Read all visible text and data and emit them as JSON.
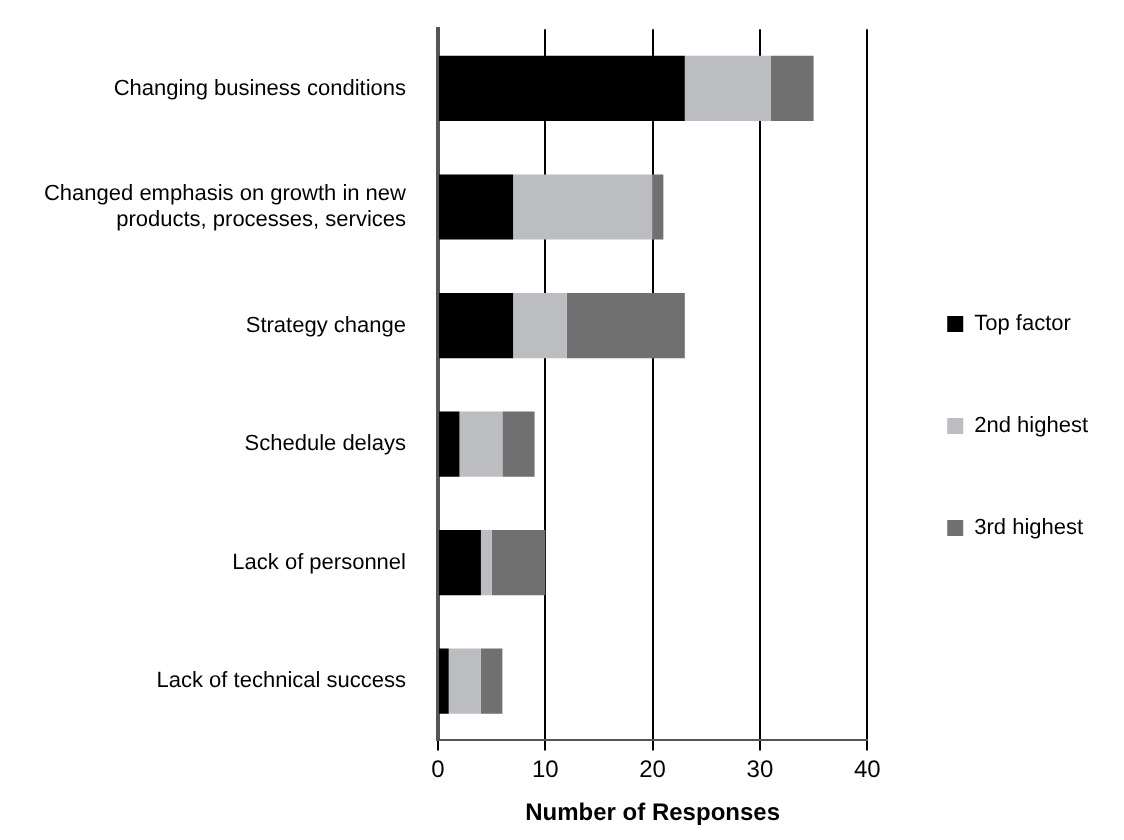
{
  "chart_data": {
    "type": "bar",
    "orientation": "horizontal",
    "stacked": true,
    "categories": [
      "Changing business conditions",
      "Changed emphasis on growth in new products, processes, services",
      "Strategy change",
      "Schedule delays",
      "Lack of personnel",
      "Lack of technical success"
    ],
    "series": [
      {
        "name": "Top factor",
        "color": "#000000",
        "values": [
          23,
          7,
          7,
          2,
          4,
          1
        ]
      },
      {
        "name": "2nd highest",
        "color": "#bcbdc0",
        "values": [
          8,
          13,
          5,
          4,
          1,
          3
        ]
      },
      {
        "name": "3rd highest",
        "color": "#707070",
        "values": [
          4,
          1,
          11,
          3,
          5,
          2
        ]
      }
    ],
    "xlabel": "Number of Responses",
    "xlim": [
      0,
      40
    ],
    "xticks": [
      0,
      10,
      20,
      30,
      40
    ],
    "grid": "x",
    "legend": "right"
  }
}
